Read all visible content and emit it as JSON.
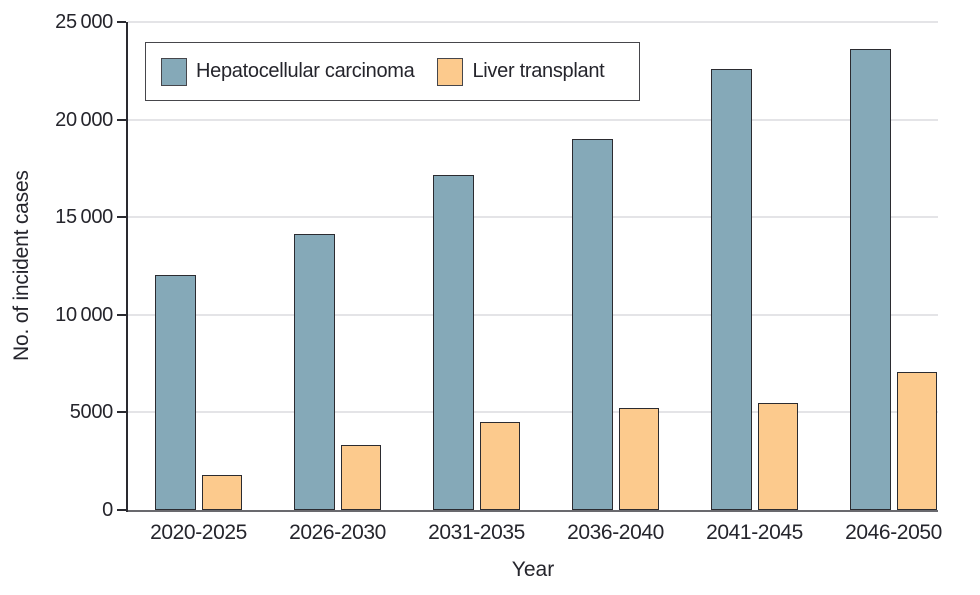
{
  "chart_data": {
    "type": "bar",
    "title": "",
    "xlabel": "Year",
    "ylabel": "No. of incident cases",
    "categories": [
      "2020-2025",
      "2026-2030",
      "2031-2035",
      "2036-2040",
      "2041-2045",
      "2046-2050"
    ],
    "series": [
      {
        "name": "Hepatocellular carcinoma",
        "color": "#85a9b8",
        "values": [
          12050,
          14150,
          17150,
          19000,
          22600,
          23600
        ]
      },
      {
        "name": "Liver transplant",
        "color": "#fcca8d",
        "values": [
          1800,
          3350,
          4500,
          5250,
          5500,
          7050
        ]
      }
    ],
    "ylim": [
      0,
      25000
    ],
    "y_tick_step": 5000,
    "y_tick_labels": [
      "0",
      "5000",
      "10 000",
      "15 000",
      "20 000",
      "25 000"
    ],
    "grid": "horizontal-light",
    "legend_position": "inside-top-left"
  },
  "colors": {
    "bar_hcc": "#85a9b8",
    "bar_transplant": "#fcca8d",
    "bar_border": "#2b2b30",
    "gridline": "#e4e4e7",
    "y_axis_line": "#2a2a30",
    "x_axis_line": "#69696e",
    "text": "#25252c",
    "legend_border": "#46464b",
    "background": "#ffffff"
  }
}
